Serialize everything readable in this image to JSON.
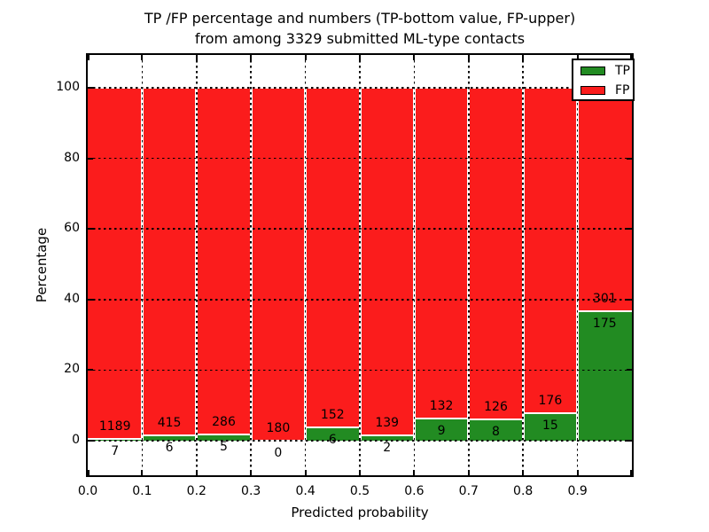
{
  "chart_data": {
    "type": "bar",
    "stacked": true,
    "unit": "percent_of_bin_total",
    "title_line1": "TP /FP percentage and numbers (TP-bottom value, FP-upper)",
    "title_line2": "from among 3329 submitted ML-type contacts",
    "xlabel": "Predicted probability",
    "ylabel": "Percentage",
    "x_tick_labels": [
      "0.0",
      "0.1",
      "0.2",
      "0.3",
      "0.4",
      "0.5",
      "0.6",
      "0.7",
      "0.8",
      "0.9"
    ],
    "y_ticks": [
      0,
      20,
      40,
      60,
      80,
      100
    ],
    "xlim": [
      0.0,
      1.0
    ],
    "ylim": [
      -10,
      109
    ],
    "grid": true,
    "categories": [
      "0.0-0.1",
      "0.1-0.2",
      "0.2-0.3",
      "0.3-0.4",
      "0.4-0.5",
      "0.5-0.6",
      "0.6-0.7",
      "0.7-0.8",
      "0.8-0.9",
      "0.9-1.0"
    ],
    "series": [
      {
        "name": "TP",
        "position": "bottom",
        "color": "#228b22",
        "values": [
          7,
          6,
          5,
          0,
          6,
          2,
          9,
          8,
          15,
          175
        ]
      },
      {
        "name": "FP",
        "position": "top",
        "color": "#fb1c1c",
        "values": [
          1189,
          415,
          286,
          180,
          152,
          139,
          132,
          126,
          176,
          301
        ]
      }
    ],
    "legend": {
      "position": "upper right",
      "entries": [
        {
          "label": "TP",
          "color": "#228b22"
        },
        {
          "label": "FP",
          "color": "#fb1c1c"
        }
      ]
    }
  }
}
